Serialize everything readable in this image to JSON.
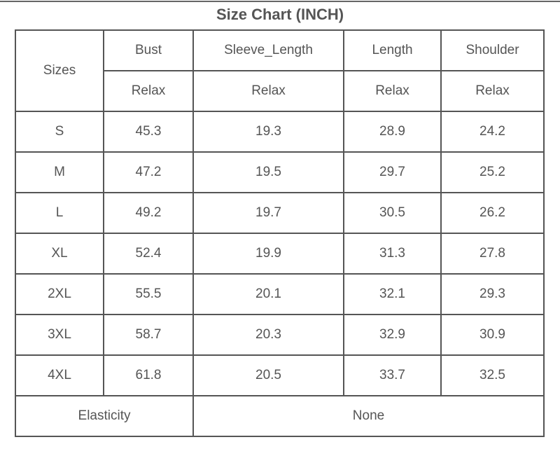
{
  "title": "Size Chart (INCH)",
  "table": {
    "sizes_label": "Sizes",
    "columns": [
      "Bust",
      "Sleeve_Length",
      "Length",
      "Shoulder"
    ],
    "subheaders": [
      "Relax",
      "Relax",
      "Relax",
      "Relax"
    ],
    "rows": [
      [
        "S",
        "45.3",
        "19.3",
        "28.9",
        "24.2"
      ],
      [
        "M",
        "47.2",
        "19.5",
        "29.7",
        "25.2"
      ],
      [
        "L",
        "49.2",
        "19.7",
        "30.5",
        "26.2"
      ],
      [
        "XL",
        "52.4",
        "19.9",
        "31.3",
        "27.8"
      ],
      [
        "2XL",
        "55.5",
        "20.1",
        "32.1",
        "29.3"
      ],
      [
        "3XL",
        "58.7",
        "20.3",
        "32.9",
        "30.9"
      ],
      [
        "4XL",
        "61.8",
        "20.5",
        "33.7",
        "32.5"
      ]
    ],
    "footer": [
      "Elasticity",
      "None"
    ]
  }
}
